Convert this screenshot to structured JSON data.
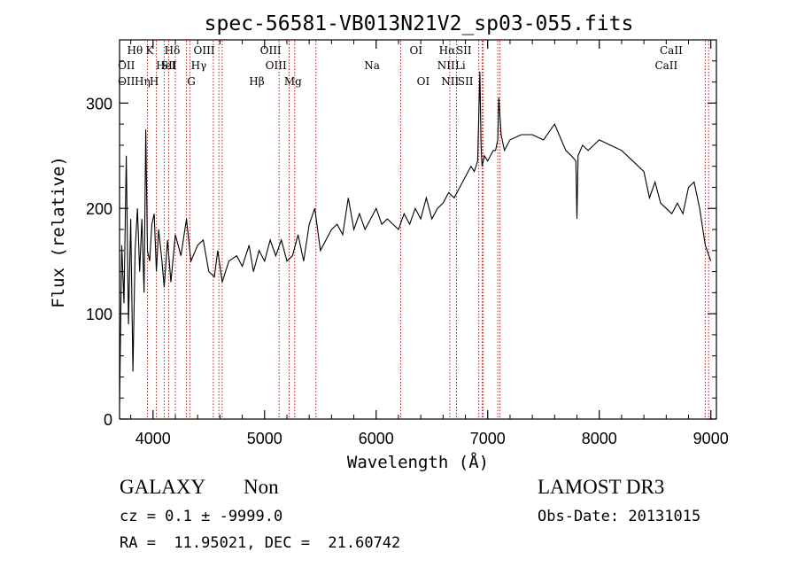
{
  "chart_data": {
    "type": "line",
    "title": "spec-56581-VB013N21V2_sp03-055.fits",
    "xlabel": "Wavelength (Å)",
    "ylabel": "Flux (relative)",
    "xlim": [
      3700,
      9050
    ],
    "ylim": [
      0,
      360
    ],
    "xticks": [
      4000,
      5000,
      6000,
      7000,
      8000,
      9000
    ],
    "yticks": [
      0,
      100,
      200,
      300
    ],
    "x_tick_labels": [
      "4000",
      "5000",
      "6000",
      "7000",
      "8000",
      "9000"
    ],
    "y_tick_labels": [
      "0",
      "100",
      "200",
      "300"
    ],
    "series": [
      {
        "name": "flux",
        "x": [
          3700,
          3720,
          3740,
          3760,
          3780,
          3800,
          3820,
          3840,
          3860,
          3880,
          3900,
          3920,
          3935,
          3950,
          3970,
          3990,
          4010,
          4030,
          4050,
          4080,
          4100,
          4130,
          4160,
          4200,
          4250,
          4300,
          4340,
          4400,
          4450,
          4500,
          4550,
          4580,
          4620,
          4680,
          4750,
          4800,
          4861,
          4900,
          4950,
          5000,
          5050,
          5100,
          5150,
          5200,
          5250,
          5300,
          5350,
          5400,
          5450,
          5500,
          5550,
          5600,
          5650,
          5700,
          5750,
          5800,
          5850,
          5900,
          5950,
          6000,
          6050,
          6100,
          6150,
          6200,
          6250,
          6300,
          6350,
          6400,
          6450,
          6500,
          6550,
          6600,
          6650,
          6700,
          6750,
          6800,
          6850,
          6880,
          6910,
          6930,
          6940,
          6950,
          6970,
          7000,
          7050,
          7070,
          7090,
          7100,
          7120,
          7150,
          7200,
          7300,
          7400,
          7500,
          7600,
          7700,
          7750,
          7790,
          7800,
          7810,
          7850,
          7900,
          8000,
          8100,
          8200,
          8300,
          8400,
          8450,
          8500,
          8550,
          8600,
          8650,
          8700,
          8750,
          8800,
          8850,
          8900,
          8950,
          9000
        ],
        "y": [
          13,
          165,
          110,
          250,
          90,
          190,
          45,
          160,
          200,
          140,
          190,
          120,
          275,
          160,
          150,
          185,
          195,
          140,
          180,
          150,
          125,
          170,
          130,
          175,
          155,
          190,
          150,
          165,
          170,
          140,
          135,
          160,
          130,
          150,
          155,
          145,
          165,
          140,
          160,
          150,
          170,
          155,
          170,
          150,
          155,
          175,
          150,
          185,
          200,
          160,
          170,
          180,
          185,
          175,
          210,
          180,
          195,
          180,
          190,
          200,
          185,
          190,
          185,
          180,
          195,
          185,
          200,
          190,
          210,
          190,
          200,
          205,
          215,
          210,
          220,
          230,
          240,
          235,
          245,
          330,
          260,
          240,
          250,
          245,
          255,
          255,
          265,
          305,
          270,
          255,
          265,
          270,
          270,
          265,
          280,
          255,
          250,
          245,
          190,
          250,
          260,
          255,
          265,
          260,
          255,
          245,
          235,
          210,
          225,
          205,
          200,
          195,
          205,
          195,
          220,
          225,
          200,
          165,
          150
        ]
      }
    ],
    "line_markers": [
      {
        "label": "Hθ",
        "wavelength": 3797,
        "row": 1,
        "label_position": "left"
      },
      {
        "label": "OII",
        "wavelength": 3727,
        "row": 2,
        "label_position": "left"
      },
      {
        "label": "OII",
        "wavelength": 3727,
        "row": 3,
        "label_position": "left"
      },
      {
        "label": "HeI",
        "wavelength": 4026,
        "row": 2,
        "label_position": "right"
      },
      {
        "label": "Hη",
        "wavelength": 3835,
        "row": 3,
        "label_position": "right"
      },
      {
        "label": "K",
        "wavelength": 3934,
        "row": 1,
        "label_position": "right"
      },
      {
        "label": "SII",
        "wavelength": 4072,
        "row": 2,
        "label_position": "right"
      },
      {
        "label": "H",
        "wavelength": 3969,
        "row": 3,
        "label_position": "right"
      },
      {
        "label": "Hδ",
        "wavelength": 4102,
        "row": 1,
        "label_position": "right"
      },
      {
        "label": "OIII",
        "wavelength": 4363,
        "row": 1,
        "label_position": "right"
      },
      {
        "label": "Hγ",
        "wavelength": 4340,
        "row": 2,
        "label_position": "right"
      },
      {
        "label": "G",
        "wavelength": 4305,
        "row": 3,
        "label_position": "right"
      },
      {
        "label": "OIII",
        "wavelength": 4959,
        "row": 1,
        "label_position": "right"
      },
      {
        "label": "OIII",
        "wavelength": 5007,
        "row": 2,
        "label_position": "right"
      },
      {
        "label": "Hβ",
        "wavelength": 4861,
        "row": 3,
        "label_position": "right"
      },
      {
        "label": "Mg",
        "wavelength": 5175,
        "row": 3,
        "label_position": "right"
      },
      {
        "label": "Na",
        "wavelength": 5893,
        "row": 2,
        "label_position": "right"
      },
      {
        "label": "OI",
        "wavelength": 6300,
        "row": 1,
        "label_position": "right"
      },
      {
        "label": "OI",
        "wavelength": 6364,
        "row": 3,
        "label_position": "right"
      },
      {
        "label": "Hα",
        "wavelength": 6563,
        "row": 1,
        "label_position": "right"
      },
      {
        "label": "SII",
        "wavelength": 6716,
        "row": 1,
        "label_position": "right"
      },
      {
        "label": "NII",
        "wavelength": 6548,
        "row": 2,
        "label_position": "right"
      },
      {
        "label": "Li",
        "wavelength": 6708,
        "row": 2,
        "label_position": "right"
      },
      {
        "label": "NII",
        "wavelength": 6583,
        "row": 3,
        "label_position": "right"
      },
      {
        "label": "SII",
        "wavelength": 6731,
        "row": 3,
        "label_position": "right"
      },
      {
        "label": "CaII",
        "wavelength": 8542,
        "row": 1,
        "label_position": "right"
      },
      {
        "label": "CaII",
        "wavelength": 8498,
        "row": 2,
        "label_position": "right"
      }
    ],
    "marker_lines_wavelength": [
      3950,
      4030,
      4100,
      4140,
      4200,
      4300,
      4330,
      4540,
      4590,
      4620,
      5130,
      5220,
      5270,
      5460,
      6220,
      6660,
      6720,
      6920,
      6950,
      6960,
      7090,
      7110,
      8950,
      8980
    ],
    "colors": {
      "spectrum": "#000000",
      "markers": "#b22222",
      "axis": "#000000",
      "background": "#ffffff"
    }
  },
  "info": {
    "class": "GALAXY",
    "subclass": "Non",
    "survey": "LAMOST DR3",
    "cz": "cz = 0.1 ± -9999.0",
    "obs_date": "Obs-Date: 20131015",
    "radec": "RA =  11.95021, DEC =  21.60742"
  }
}
